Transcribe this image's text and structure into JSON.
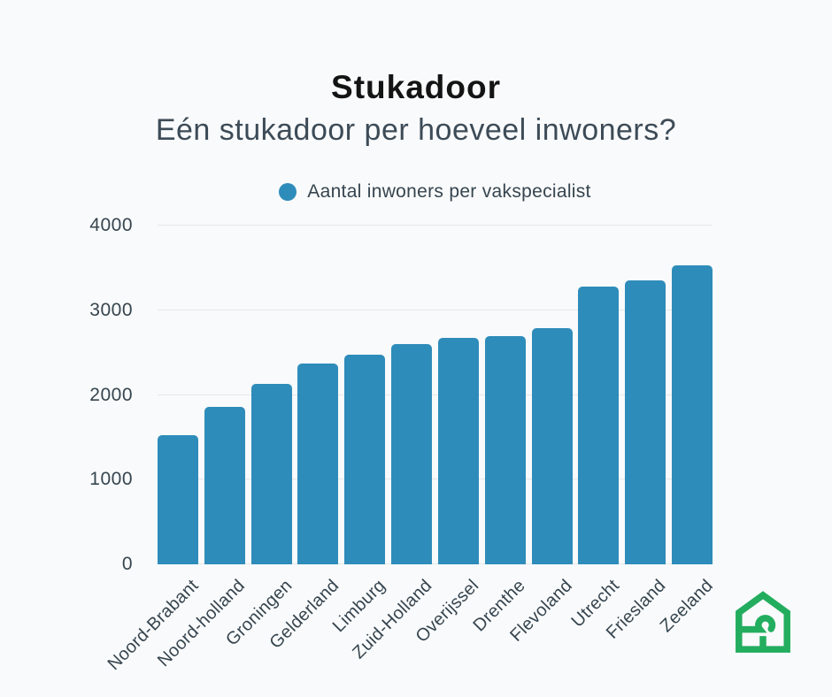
{
  "header": {
    "title": "Stukadoor",
    "subtitle": "Eén stukadoor per hoeveel inwoners?"
  },
  "legend": {
    "label": "Aantal inwoners per vakspecialist",
    "marker_color": "#2E8CBA"
  },
  "chart_data": {
    "type": "bar",
    "title": "Stukadoor",
    "subtitle": "Eén stukadoor per hoeveel inwoners?",
    "legend_entries": [
      "Aantal inwoners per vakspecialist"
    ],
    "legend_position": "top-center",
    "categories": [
      "Noord-Brabant",
      "Noord-holland",
      "Groningen",
      "Gelderland",
      "Limburg",
      "Zuid-Holland",
      "Overijssel",
      "Drenthe",
      "Flevoland",
      "Utrecht",
      "Friesland",
      "Zeeland"
    ],
    "values": [
      1530,
      1860,
      2130,
      2370,
      2480,
      2600,
      2670,
      2690,
      2790,
      3280,
      3350,
      3530
    ],
    "xlabel": "",
    "ylabel": "",
    "ylim": [
      0,
      4000
    ],
    "yticks": [
      0,
      1000,
      2000,
      3000,
      4000
    ],
    "grid": "horizontal",
    "bar_color": "#2E8CBA",
    "gridline_color": "#E4E7E8"
  },
  "logo": {
    "name": "house-question-mark-logo",
    "color": "#23AD5F"
  },
  "colors": {
    "background": "#F9FAFB",
    "title_text": "#141414",
    "subtitle_text": "#3C4B57",
    "axis_text": "#36454F"
  }
}
